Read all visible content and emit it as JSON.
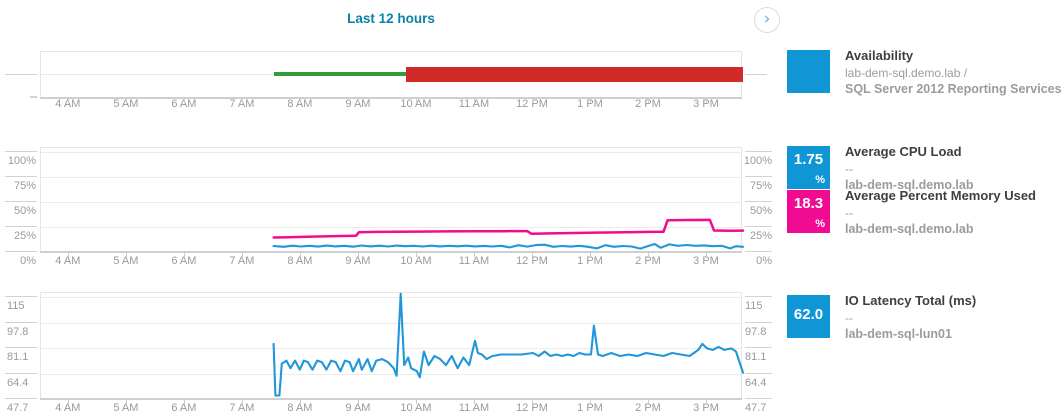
{
  "header": {
    "time_range_label": "Last 12 hours",
    "next_icon": "›"
  },
  "colors": {
    "accent_blue": "#1095d5",
    "pink": "#f10a92",
    "up_green": "#2f9e38",
    "down_red": "#d22a28",
    "header_teal": "#0b80a8",
    "axis_text": "#9a9a9a"
  },
  "time_axis": {
    "labels": [
      "4 AM",
      "5 AM",
      "6 AM",
      "7 AM",
      "8 AM",
      "9 AM",
      "10 AM",
      "11 AM",
      "12 PM",
      "1 PM",
      "2 PM",
      "3 PM"
    ],
    "hours": [
      4,
      5,
      6,
      7,
      8,
      9,
      10,
      11,
      12,
      13,
      14,
      15
    ],
    "domain_hours": [
      3.52,
      15.62
    ]
  },
  "chart_data": [
    {
      "type": "timeline-bar",
      "name": "availability",
      "title": "Availability",
      "segments": [
        {
          "label": "up",
          "color": "#2f9e38",
          "from_hour": 7.53,
          "to_hour": 9.81,
          "thickness": 4
        },
        {
          "label": "down",
          "color": "#d22a28",
          "from_hour": 9.81,
          "to_hour": 15.62,
          "thickness": 15
        }
      ]
    },
    {
      "type": "line",
      "name": "cpu-memory-percent",
      "y_tick_labels": [
        "100%",
        "75%",
        "50%",
        "25%",
        "0%"
      ],
      "y_tick_values": [
        100,
        75,
        50,
        25,
        0
      ],
      "ylim": [
        0,
        104
      ],
      "series": [
        {
          "name": "Average CPU Load",
          "color": "#2196d8",
          "points": [
            [
              7.53,
              6.0
            ],
            [
              7.7,
              5.2
            ],
            [
              7.85,
              6.3
            ],
            [
              8.0,
              5.5
            ],
            [
              8.15,
              6.2
            ],
            [
              8.3,
              5.4
            ],
            [
              8.45,
              6.4
            ],
            [
              8.6,
              5.6
            ],
            [
              8.75,
              6.2
            ],
            [
              8.9,
              5.3
            ],
            [
              9.05,
              6.5
            ],
            [
              9.2,
              5.6
            ],
            [
              9.35,
              6.3
            ],
            [
              9.5,
              5.5
            ],
            [
              9.65,
              6.4
            ],
            [
              9.8,
              5.8
            ],
            [
              9.95,
              6.2
            ],
            [
              10.1,
              5.5
            ],
            [
              10.25,
              6.3
            ],
            [
              10.4,
              5.6
            ],
            [
              10.55,
              6.2
            ],
            [
              10.7,
              5.7
            ],
            [
              10.85,
              6.3
            ],
            [
              11.0,
              5.6
            ],
            [
              11.15,
              6.1
            ],
            [
              11.3,
              5.5
            ],
            [
              11.45,
              6.2
            ],
            [
              11.6,
              4.6
            ],
            [
              11.75,
              6.8
            ],
            [
              11.9,
              5.4
            ],
            [
              12.05,
              6.9
            ],
            [
              12.2,
              7.3
            ],
            [
              12.35,
              5.2
            ],
            [
              12.5,
              6.0
            ],
            [
              12.65,
              5.4
            ],
            [
              12.8,
              6.2
            ],
            [
              12.95,
              5.2
            ],
            [
              13.1,
              3.6
            ],
            [
              13.25,
              6.8
            ],
            [
              13.4,
              5.2
            ],
            [
              13.55,
              6.0
            ],
            [
              13.7,
              5.5
            ],
            [
              13.85,
              3.4
            ],
            [
              14.0,
              6.2
            ],
            [
              14.1,
              8.0
            ],
            [
              14.2,
              4.2
            ],
            [
              14.35,
              7.6
            ],
            [
              14.5,
              6.2
            ],
            [
              14.65,
              7.0
            ],
            [
              14.8,
              6.2
            ],
            [
              14.95,
              6.6
            ],
            [
              15.1,
              5.8
            ],
            [
              15.25,
              6.2
            ],
            [
              15.4,
              3.6
            ],
            [
              15.5,
              5.8
            ],
            [
              15.62,
              5.2
            ]
          ]
        },
        {
          "name": "Average Percent Memory Used",
          "color": "#f10a92",
          "points": [
            [
              7.53,
              14.5
            ],
            [
              7.8,
              14.8
            ],
            [
              8.1,
              15.2
            ],
            [
              8.4,
              15.6
            ],
            [
              8.7,
              16.0
            ],
            [
              8.95,
              16.2
            ],
            [
              9.0,
              19.8
            ],
            [
              9.3,
              20.1
            ],
            [
              9.6,
              20.3
            ],
            [
              10.0,
              20.4
            ],
            [
              10.5,
              20.6
            ],
            [
              11.0,
              20.7
            ],
            [
              11.5,
              20.8
            ],
            [
              11.9,
              20.9
            ],
            [
              11.97,
              18.3
            ],
            [
              12.3,
              18.6
            ],
            [
              12.7,
              19.0
            ],
            [
              13.1,
              19.4
            ],
            [
              13.6,
              19.8
            ],
            [
              14.0,
              20.1
            ],
            [
              14.25,
              20.2
            ],
            [
              14.32,
              31.8
            ],
            [
              14.7,
              32.0
            ],
            [
              15.05,
              32.1
            ],
            [
              15.12,
              21.5
            ],
            [
              15.4,
              21.3
            ],
            [
              15.62,
              21.4
            ]
          ]
        }
      ]
    },
    {
      "type": "line",
      "name": "io-latency",
      "y_tick_labels": [
        "115",
        "97.8",
        "81.1",
        "64.4",
        "47.7"
      ],
      "y_tick_values": [
        115,
        97.8,
        81.1,
        64.4,
        47.7
      ],
      "ylim": [
        47.7,
        117.5
      ],
      "series": [
        {
          "name": "IO Latency Total (ms)",
          "color": "#2196d8",
          "points": [
            [
              7.53,
              84
            ],
            [
              7.56,
              50
            ],
            [
              7.63,
              50
            ],
            [
              7.67,
              71
            ],
            [
              7.75,
              73
            ],
            [
              7.82,
              68
            ],
            [
              7.9,
              73
            ],
            [
              7.98,
              67
            ],
            [
              8.05,
              73
            ],
            [
              8.12,
              72
            ],
            [
              8.2,
              67
            ],
            [
              8.28,
              73
            ],
            [
              8.36,
              72
            ],
            [
              8.44,
              67
            ],
            [
              8.52,
              73
            ],
            [
              8.6,
              72
            ],
            [
              8.68,
              66
            ],
            [
              8.76,
              73
            ],
            [
              8.84,
              72
            ],
            [
              8.9,
              66
            ],
            [
              9.0,
              74
            ],
            [
              9.05,
              67
            ],
            [
              9.15,
              74
            ],
            [
              9.22,
              66
            ],
            [
              9.3,
              73
            ],
            [
              9.4,
              74
            ],
            [
              9.5,
              72
            ],
            [
              9.6,
              68
            ],
            [
              9.65,
              63
            ],
            [
              9.72,
              117
            ],
            [
              9.78,
              70
            ],
            [
              9.85,
              75
            ],
            [
              9.9,
              68
            ],
            [
              10.0,
              66
            ],
            [
              10.05,
              62
            ],
            [
              10.12,
              79
            ],
            [
              10.2,
              70
            ],
            [
              10.3,
              76
            ],
            [
              10.4,
              74
            ],
            [
              10.5,
              70
            ],
            [
              10.6,
              76
            ],
            [
              10.7,
              68
            ],
            [
              10.8,
              75
            ],
            [
              10.9,
              70
            ],
            [
              11.0,
              86
            ],
            [
              11.05,
              78
            ],
            [
              11.12,
              77
            ],
            [
              11.2,
              74
            ],
            [
              11.3,
              76
            ],
            [
              11.45,
              77
            ],
            [
              11.6,
              77
            ],
            [
              11.8,
              77
            ],
            [
              12.0,
              78
            ],
            [
              12.1,
              76
            ],
            [
              12.2,
              79
            ],
            [
              12.3,
              76
            ],
            [
              12.4,
              77
            ],
            [
              12.5,
              76
            ],
            [
              12.6,
              77
            ],
            [
              12.7,
              76
            ],
            [
              12.8,
              78
            ],
            [
              12.9,
              77
            ],
            [
              13.0,
              77
            ],
            [
              13.05,
              96
            ],
            [
              13.12,
              77
            ],
            [
              13.2,
              76
            ],
            [
              13.35,
              78
            ],
            [
              13.5,
              76
            ],
            [
              13.65,
              77
            ],
            [
              13.8,
              76
            ],
            [
              13.95,
              78
            ],
            [
              14.1,
              77
            ],
            [
              14.25,
              76
            ],
            [
              14.4,
              78
            ],
            [
              14.55,
              77
            ],
            [
              14.7,
              76
            ],
            [
              14.85,
              80
            ],
            [
              14.92,
              84
            ],
            [
              15.0,
              81
            ],
            [
              15.1,
              80
            ],
            [
              15.2,
              82
            ],
            [
              15.3,
              80
            ],
            [
              15.42,
              81
            ],
            [
              15.5,
              79
            ],
            [
              15.62,
              65
            ]
          ]
        }
      ]
    }
  ],
  "legends": [
    {
      "value": "",
      "unit": "",
      "color": "#1095d5",
      "title": "Availability",
      "subtitle": "lab-dem-sql.demo.lab /",
      "subtitle2": "SQL Server 2012 Reporting Services"
    },
    {
      "value": "1.75",
      "unit": "%",
      "color": "#1095d5",
      "title": "Average CPU Load",
      "subtitle": "--",
      "subtitle2": "lab-dem-sql.demo.lab"
    },
    {
      "value": "18.3",
      "unit": "%",
      "color": "#f10a92",
      "title": "Average Percent Memory Used",
      "subtitle": "--",
      "subtitle2": "lab-dem-sql.demo.lab"
    },
    {
      "value": "62.0",
      "unit": "",
      "color": "#1095d5",
      "title": "IO Latency Total (ms)",
      "subtitle": "--",
      "subtitle2": "lab-dem-sql-lun01"
    }
  ]
}
